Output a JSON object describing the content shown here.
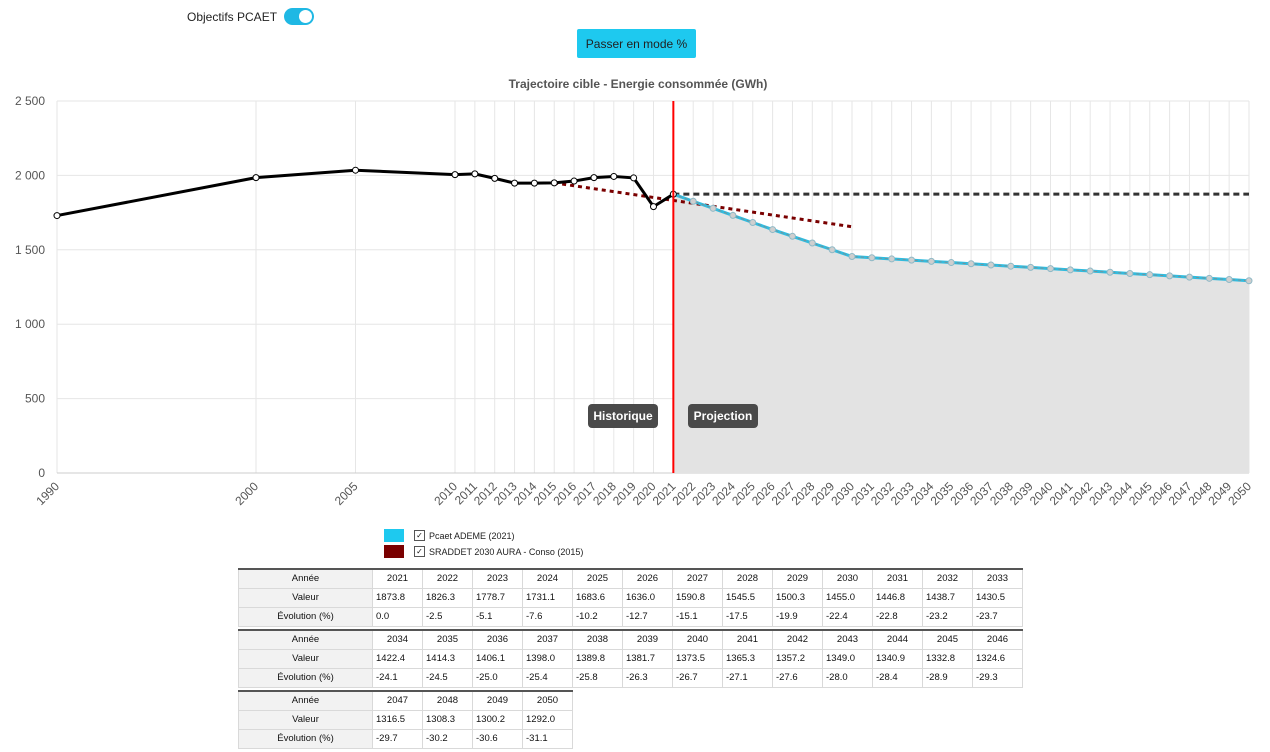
{
  "controls": {
    "pcaet_toggle_label": "Objectifs PCAET",
    "pcaet_toggle_on": true,
    "mode_button_label": "Passer en mode %"
  },
  "colors": {
    "pcaet": "#33bbdd",
    "sraddet": "#7a0000",
    "history": "#000000",
    "reference": "#333333",
    "separator": "#ff0000",
    "projection_area": "#e3e3e3"
  },
  "chart_data": {
    "type": "line",
    "title": "Trajectoire cible - Energie consommée (GWh)",
    "xlabel": "",
    "ylabel": "",
    "ylim": [
      0,
      2500
    ],
    "yticks": [
      "0",
      "500",
      "1 000",
      "1 500",
      "2 000",
      "2 500"
    ],
    "x_ticks": [
      1990,
      2000,
      2005,
      2010,
      2011,
      2012,
      2013,
      2014,
      2015,
      2016,
      2017,
      2018,
      2019,
      2020,
      2021,
      2022,
      2023,
      2024,
      2025,
      2026,
      2027,
      2028,
      2029,
      2030,
      2031,
      2032,
      2033,
      2034,
      2035,
      2036,
      2037,
      2038,
      2039,
      2040,
      2041,
      2042,
      2043,
      2044,
      2045,
      2046,
      2047,
      2048,
      2049,
      2050
    ],
    "grid": true,
    "separator_year": 2021,
    "annotations": [
      "Historique",
      "Projection"
    ],
    "legend_placement": "bottom",
    "history": {
      "x": [
        1990,
        2000,
        2005,
        2010,
        2011,
        2012,
        2013,
        2014,
        2015,
        2016,
        2017,
        2018,
        2019,
        2020,
        2021
      ],
      "y": [
        1730,
        1985,
        2035,
        2005,
        2010,
        1980,
        1948,
        1948,
        1950,
        1962,
        1985,
        1993,
        1983,
        1790,
        1873.8
      ]
    },
    "series": [
      {
        "name": "Pcaet ADEME (2021)",
        "x": [
          2021,
          2022,
          2023,
          2024,
          2025,
          2026,
          2027,
          2028,
          2029,
          2030,
          2031,
          2032,
          2033,
          2034,
          2035,
          2036,
          2037,
          2038,
          2039,
          2040,
          2041,
          2042,
          2043,
          2044,
          2045,
          2046,
          2047,
          2048,
          2049,
          2050
        ],
        "y": [
          1873.8,
          1826.3,
          1778.7,
          1731.1,
          1683.6,
          1636.0,
          1590.8,
          1545.5,
          1500.3,
          1455.0,
          1446.8,
          1438.7,
          1430.5,
          1422.4,
          1414.3,
          1406.1,
          1398.0,
          1389.8,
          1381.7,
          1373.5,
          1365.3,
          1357.2,
          1349.0,
          1340.9,
          1332.8,
          1324.6,
          1316.5,
          1308.3,
          1300.2,
          1292.0
        ]
      },
      {
        "name": "SRADDET 2030 AURA - Conso (2015)",
        "x": [
          2015,
          2030
        ],
        "y": [
          1950,
          1655
        ]
      }
    ],
    "reference_line": {
      "x": [
        2021,
        2050
      ],
      "y": [
        1873.8,
        1873.8
      ]
    }
  },
  "table": {
    "row_labels": [
      "Année",
      "Valeur",
      "Évolution (%)"
    ],
    "blocks": [
      {
        "years": [
          "2021",
          "2022",
          "2023",
          "2024",
          "2025",
          "2026",
          "2027",
          "2028",
          "2029",
          "2030",
          "2031",
          "2032",
          "2033"
        ],
        "values": [
          "1873.8",
          "1826.3",
          "1778.7",
          "1731.1",
          "1683.6",
          "1636.0",
          "1590.8",
          "1545.5",
          "1500.3",
          "1455.0",
          "1446.8",
          "1438.7",
          "1430.5"
        ],
        "evolution": [
          "0.0",
          "-2.5",
          "-5.1",
          "-7.6",
          "-10.2",
          "-12.7",
          "-15.1",
          "-17.5",
          "-19.9",
          "-22.4",
          "-22.8",
          "-23.2",
          "-23.7"
        ]
      },
      {
        "years": [
          "2034",
          "2035",
          "2036",
          "2037",
          "2038",
          "2039",
          "2040",
          "2041",
          "2042",
          "2043",
          "2044",
          "2045",
          "2046"
        ],
        "values": [
          "1422.4",
          "1414.3",
          "1406.1",
          "1398.0",
          "1389.8",
          "1381.7",
          "1373.5",
          "1365.3",
          "1357.2",
          "1349.0",
          "1340.9",
          "1332.8",
          "1324.6"
        ],
        "evolution": [
          "-24.1",
          "-24.5",
          "-25.0",
          "-25.4",
          "-25.8",
          "-26.3",
          "-26.7",
          "-27.1",
          "-27.6",
          "-28.0",
          "-28.4",
          "-28.9",
          "-29.3"
        ]
      },
      {
        "years": [
          "2047",
          "2048",
          "2049",
          "2050"
        ],
        "values": [
          "1316.5",
          "1308.3",
          "1300.2",
          "1292.0"
        ],
        "evolution": [
          "-29.7",
          "-30.2",
          "-30.6",
          "-31.1"
        ]
      }
    ]
  }
}
